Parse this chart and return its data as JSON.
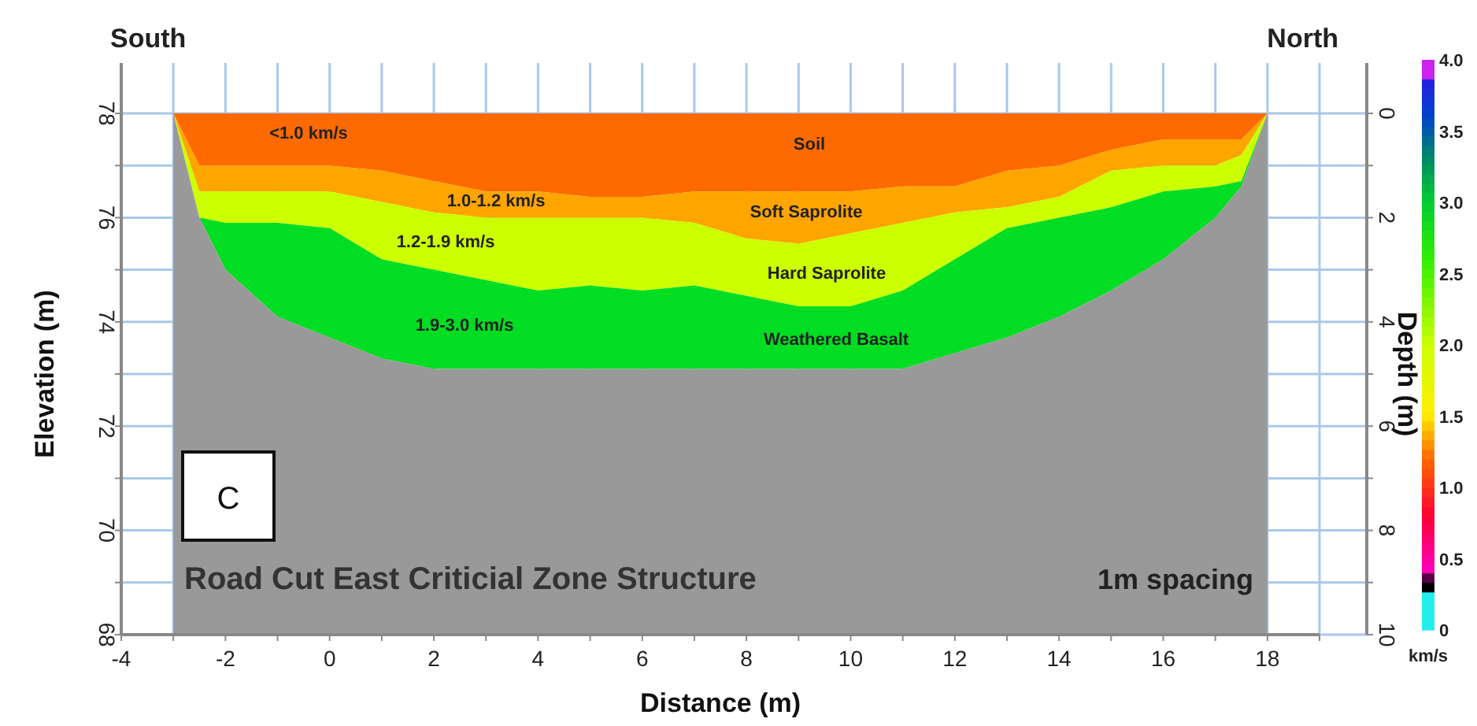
{
  "chart_data": {
    "type": "area",
    "title": "Road Cut East Criticial Zone Structure",
    "xlabel": "Distance (m)",
    "ylabel": "Elevation (m)",
    "y2label": "Depth (m)",
    "clabel": "km/s",
    "x": [
      -3,
      -2.5,
      -2,
      -1,
      0,
      1,
      2,
      3,
      4,
      5,
      6,
      7,
      8,
      9,
      10,
      11,
      12,
      13,
      14,
      15,
      16,
      17,
      17.5,
      18
    ],
    "series": [
      {
        "color": "#ff6a00",
        "values": [
          78,
          78,
          78,
          78,
          78,
          78,
          78,
          78,
          78,
          78,
          78,
          78,
          78,
          78,
          78,
          78,
          78,
          78,
          78,
          78,
          78,
          78,
          78,
          78
        ]
      },
      {
        "color": "#ffa500",
        "values": [
          78,
          77.0,
          77.0,
          77.0,
          77.0,
          76.9,
          76.7,
          76.5,
          76.5,
          76.4,
          76.4,
          76.5,
          76.5,
          76.5,
          76.5,
          76.6,
          76.6,
          76.9,
          77.0,
          77.3,
          77.5,
          77.5,
          77.5,
          78
        ]
      },
      {
        "color": "#ccff00",
        "values": [
          78,
          76.5,
          76.5,
          76.5,
          76.5,
          76.3,
          76.1,
          76.0,
          76.0,
          76.0,
          76.0,
          75.9,
          75.6,
          75.5,
          75.7,
          75.9,
          76.1,
          76.2,
          76.4,
          76.9,
          77.0,
          77.0,
          77.2,
          78
        ]
      },
      {
        "color": "#00dd22",
        "values": [
          78,
          76.0,
          75.9,
          75.9,
          75.8,
          75.2,
          75.0,
          74.8,
          74.6,
          74.7,
          74.6,
          74.7,
          74.5,
          74.3,
          74.3,
          74.6,
          75.2,
          75.8,
          76.0,
          76.2,
          76.5,
          76.6,
          76.7,
          78
        ]
      },
      {
        "color": "#999999",
        "values": [
          78,
          76.0,
          75.0,
          74.1,
          73.7,
          73.3,
          73.1,
          73.1,
          73.1,
          73.1,
          73.1,
          73.1,
          73.1,
          73.1,
          73.1,
          73.1,
          73.4,
          73.7,
          74.1,
          74.6,
          75.2,
          76.0,
          76.6,
          78
        ]
      }
    ],
    "xlim": [
      -4,
      19
    ],
    "xticks": [
      -4,
      {
        "value": -3,
        "label": null
      },
      -2,
      {
        "value": -1,
        "label": null
      },
      0,
      {
        "value": 1,
        "label": null
      },
      2,
      {
        "value": 3,
        "label": null
      },
      4,
      {
        "value": 5,
        "label": null
      },
      6,
      {
        "value": 7,
        "label": null
      },
      8,
      {
        "value": 9,
        "label": null
      },
      10,
      {
        "value": 11,
        "label": null
      },
      12,
      {
        "value": 13,
        "label": null
      },
      14,
      {
        "value": 15,
        "label": null
      },
      16,
      {
        "value": 17,
        "label": null
      },
      18,
      {
        "value": 19,
        "label": null
      }
    ],
    "ylim": [
      68,
      78
    ],
    "yticks": [
      68,
      {
        "value": 69,
        "label": null
      },
      70,
      {
        "value": 71,
        "label": null
      },
      72,
      {
        "value": 73,
        "label": null
      },
      74,
      {
        "value": 75,
        "label": null
      },
      76,
      {
        "value": 77,
        "label": null
      },
      78
    ],
    "y2lim": [
      10,
      0
    ],
    "y2ticks": [
      0,
      {
        "value": 1,
        "label": null
      },
      2,
      {
        "value": 3,
        "label": null
      },
      4,
      {
        "value": 5,
        "label": null
      },
      6,
      {
        "value": 7,
        "label": null
      },
      8,
      {
        "value": 9,
        "label": null
      },
      10
    ],
    "clim": [
      0,
      4
    ],
    "cticks": [
      0,
      {
        "value": 0.5,
        "label": "0.5"
      },
      {
        "value": 1,
        "label": "1.0"
      },
      {
        "value": 1.5,
        "label": "1.5"
      },
      {
        "value": 2,
        "label": "2.0"
      },
      {
        "value": 2.5,
        "label": "2.5"
      },
      {
        "value": 3,
        "label": "3.0"
      },
      {
        "value": 3.5,
        "label": "3.5"
      },
      {
        "value": 4,
        "label": "4.0"
      }
    ],
    "grid": true,
    "annotations": [
      "South",
      "North",
      "C",
      "1m spacing",
      "<1.0 km/s",
      "1.0-1.2 km/s",
      "1.2-1.9 km/s",
      "1.9-3.0 km/s",
      "Soil",
      "Soft Saprolite",
      "Hard Saprolite",
      "Weathered Basalt"
    ]
  }
}
